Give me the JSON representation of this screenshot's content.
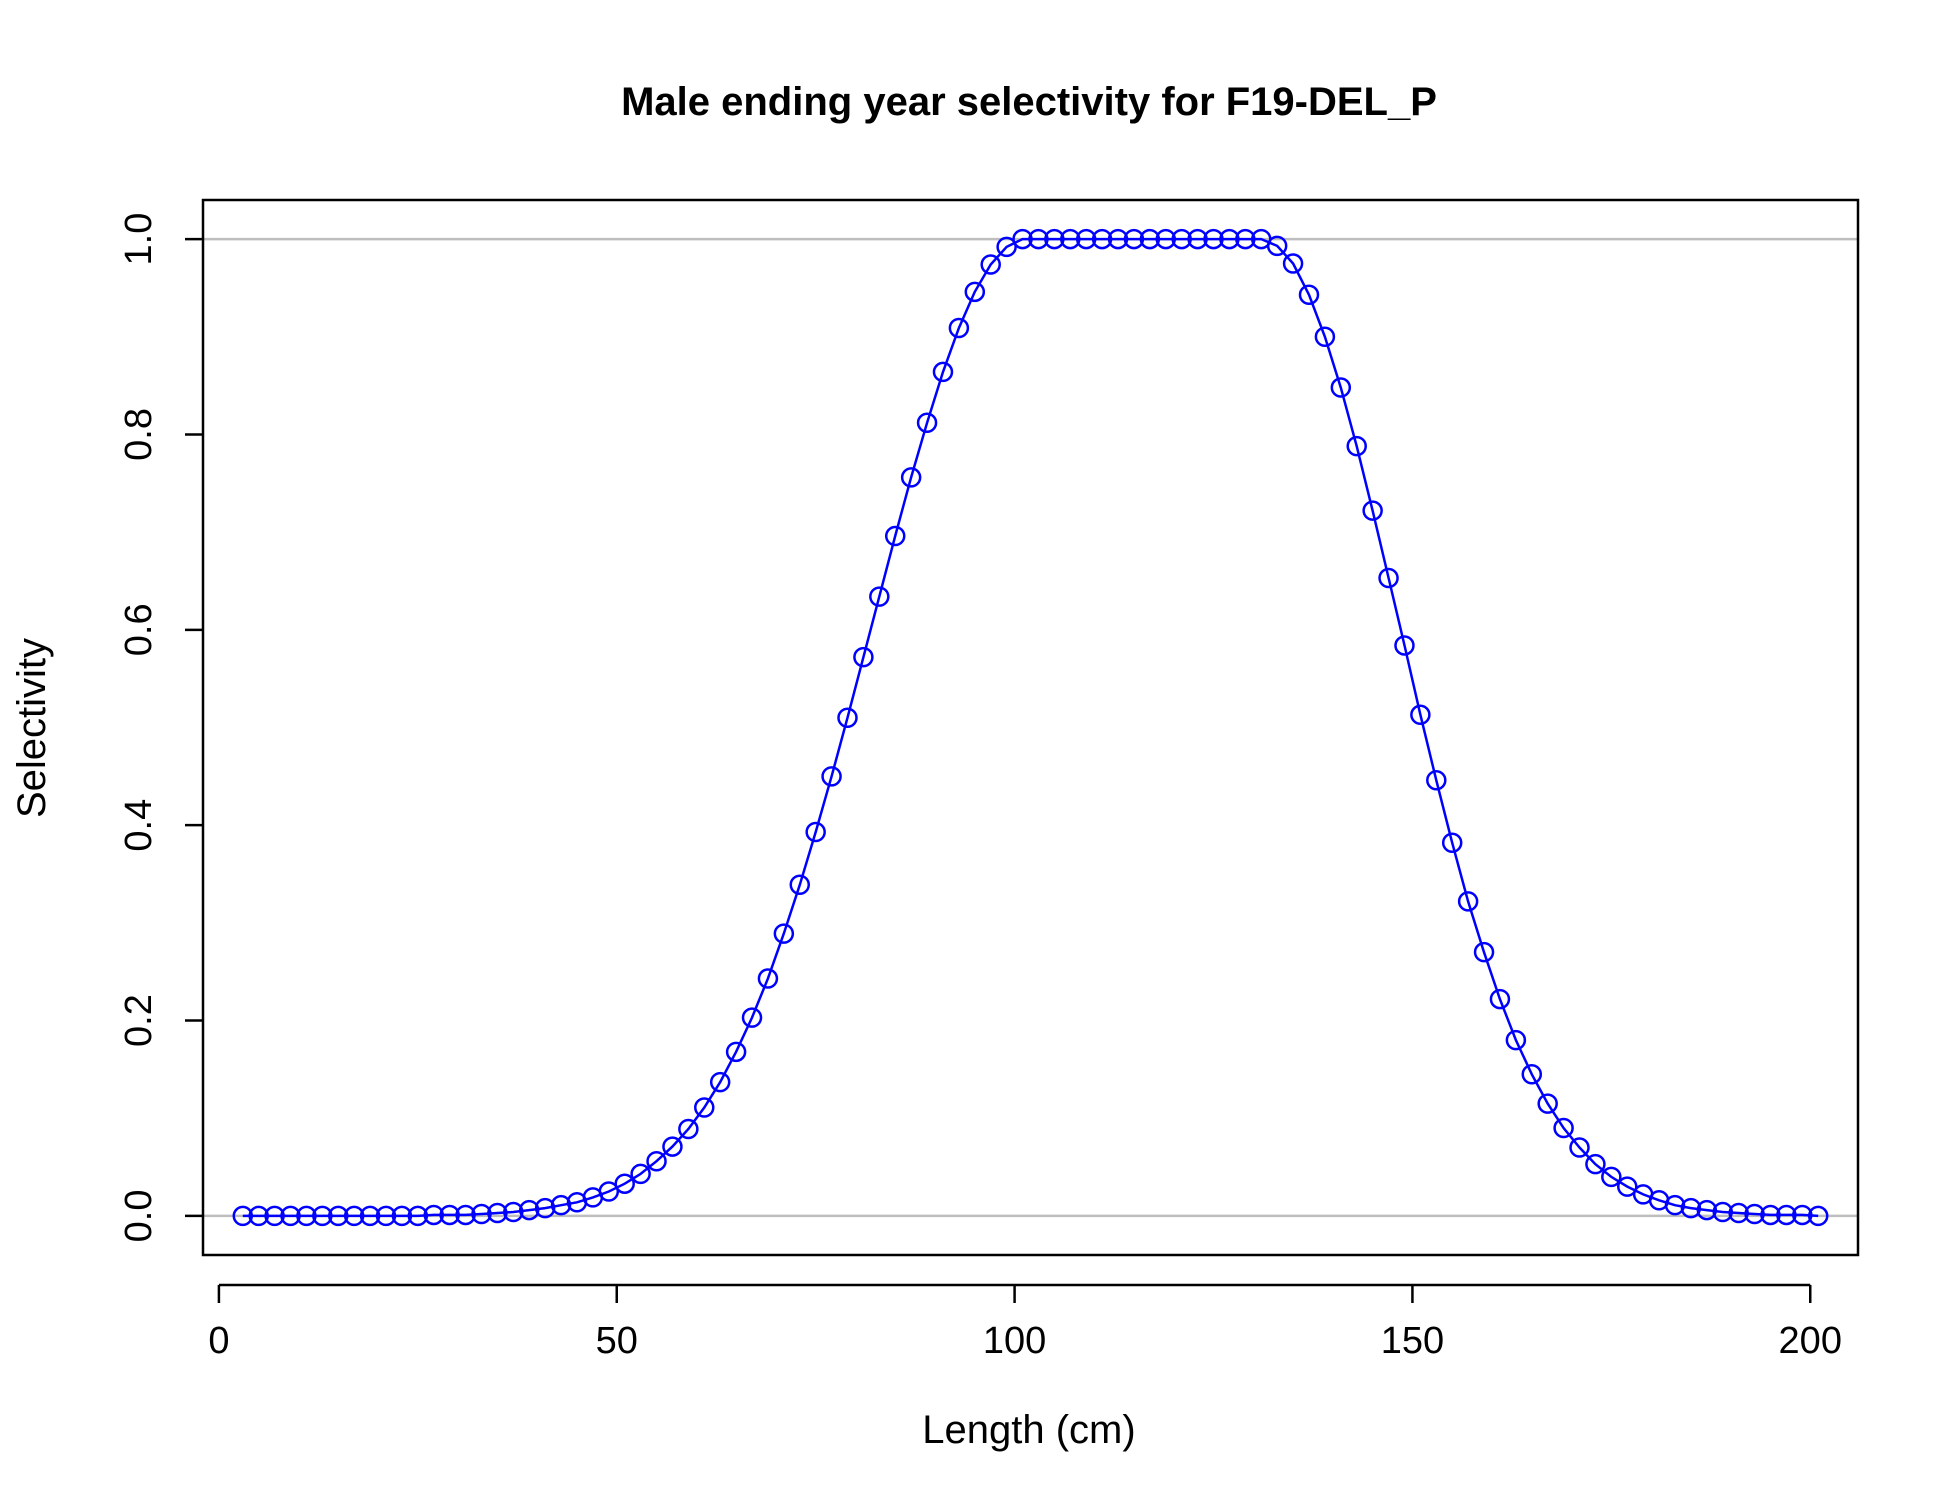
{
  "chart_data": {
    "type": "line",
    "title": "Male ending year selectivity for F19-DEL_P",
    "xlabel": "Length (cm)",
    "ylabel": "Selectivity",
    "xlim": [
      -2,
      206
    ],
    "ylim": [
      -0.04,
      1.04
    ],
    "xticks": [
      "0",
      "50",
      "100",
      "150",
      "200"
    ],
    "xtick_values": [
      0,
      50,
      100,
      150,
      200
    ],
    "yticks": [
      "0.0",
      "0.2",
      "0.4",
      "0.6",
      "0.8",
      "1.0"
    ],
    "ytick_values": [
      0,
      0.2,
      0.4,
      0.6,
      0.8,
      1.0
    ],
    "reference_lines_y": [
      0,
      1
    ],
    "reference_line_color": "#bebebe",
    "series_color": "#0000ff",
    "marker": "open-circle",
    "series": [
      {
        "x": [
          3,
          5,
          7,
          9,
          11,
          13,
          15,
          17,
          19,
          21,
          23,
          25,
          27,
          29,
          31,
          33,
          35,
          37,
          39,
          41,
          43,
          45,
          47,
          49,
          51,
          53,
          55,
          57,
          59,
          61,
          63,
          65,
          67,
          69,
          71,
          73,
          75,
          77,
          79,
          81,
          83,
          85,
          87,
          89,
          91,
          93,
          95,
          97,
          99,
          101,
          103,
          105,
          107,
          109,
          111,
          113,
          115,
          117,
          119,
          121,
          123,
          125,
          127,
          129,
          131,
          133,
          135,
          137,
          139,
          141,
          143,
          145,
          147,
          149,
          151,
          153,
          155,
          157,
          159,
          161,
          163,
          165,
          167,
          169,
          171,
          173,
          175,
          177,
          179,
          181,
          183,
          185,
          187,
          189,
          191,
          193,
          195,
          197,
          199,
          201
        ],
        "y": [
          0.0,
          0.0,
          0.0,
          0.0,
          0.0,
          0.0,
          0.0,
          0.0,
          0.0,
          0.0,
          0.0,
          0.0,
          0.001,
          0.001,
          0.001,
          0.002,
          0.003,
          0.004,
          0.006,
          0.008,
          0.011,
          0.014,
          0.019,
          0.025,
          0.033,
          0.043,
          0.056,
          0.071,
          0.089,
          0.111,
          0.137,
          0.168,
          0.203,
          0.243,
          0.289,
          0.339,
          0.393,
          0.45,
          0.51,
          0.572,
          0.634,
          0.696,
          0.756,
          0.812,
          0.864,
          0.909,
          0.946,
          0.974,
          0.992,
          1.0,
          1.0,
          1.0,
          1.0,
          1.0,
          1.0,
          1.0,
          1.0,
          1.0,
          1.0,
          1.0,
          1.0,
          1.0,
          1.0,
          1.0,
          1.0,
          0.993,
          0.975,
          0.943,
          0.9,
          0.848,
          0.788,
          0.722,
          0.653,
          0.584,
          0.513,
          0.446,
          0.382,
          0.322,
          0.27,
          0.222,
          0.18,
          0.145,
          0.115,
          0.09,
          0.07,
          0.053,
          0.04,
          0.03,
          0.022,
          0.016,
          0.011,
          0.008,
          0.006,
          0.004,
          0.003,
          0.002,
          0.001,
          0.001,
          0.001,
          0.0
        ]
      }
    ]
  }
}
